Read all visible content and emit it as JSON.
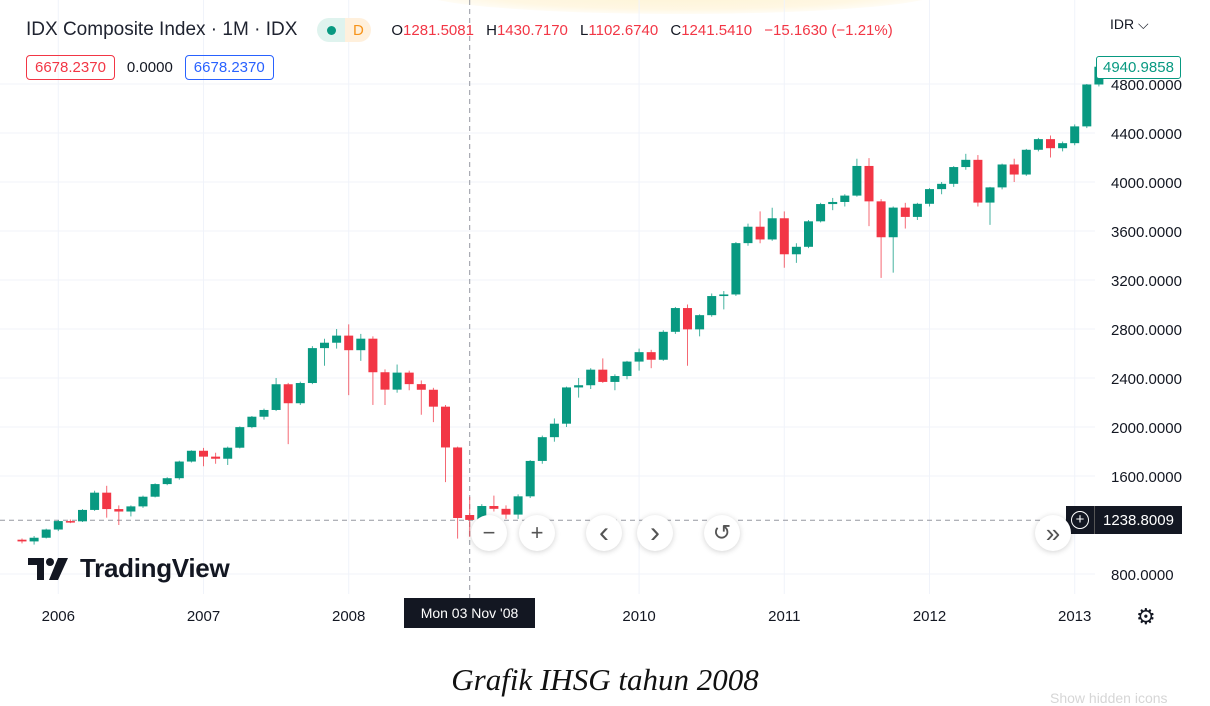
{
  "header": {
    "title": "IDX Composite Index · 1M · IDX",
    "badge_letter": "D",
    "ohlc": [
      {
        "k": "O",
        "v": "1281.5081"
      },
      {
        "k": "H",
        "v": "1430.7170"
      },
      {
        "k": "L",
        "v": "1102.6740"
      },
      {
        "k": "C",
        "v": "1241.5410"
      }
    ],
    "change": "−15.1630 (−1.21%)",
    "bid": "6678.2370",
    "spread": "0.0000",
    "ask": "6678.2370"
  },
  "currency": "IDR",
  "last_price": "4940.9858",
  "crosshair": {
    "price": "1238.8009",
    "time": "Mon 03 Nov '08"
  },
  "nav": {
    "zoom_out": "−",
    "zoom_in": "+",
    "left": "‹",
    "right": "›",
    "reset": "↺",
    "scroll_end": "»"
  },
  "logo_text": "TradingView",
  "caption": "Grafik IHSG tahun 2008",
  "tooltip": "Show hidden icons",
  "colors": {
    "up": "#089981",
    "down": "#f23645",
    "grid": "#f0f3fa"
  },
  "chart_data": {
    "type": "candlestick",
    "title": "IDX Composite Index · 1M · IDX",
    "xlabel": "",
    "ylabel": "IDR",
    "start_month": "2005-10",
    "interval": "1M",
    "ylim": [
      800,
      4900
    ],
    "y_ticks": [
      "800.0000",
      "1600.0000",
      "2000.0000",
      "2400.0000",
      "2800.0000",
      "3200.0000",
      "3600.0000",
      "4000.0000",
      "4400.0000",
      "4800.0000"
    ],
    "y_tick_values": [
      800,
      1600,
      2000,
      2400,
      2800,
      3200,
      3600,
      4000,
      4400,
      4800
    ],
    "x_ticks": [
      "2006",
      "2007",
      "2008",
      "2010",
      "2011",
      "2012",
      "2013"
    ],
    "x_tick_month_index": [
      3,
      15,
      27,
      51,
      63,
      75,
      87
    ],
    "grid": true,
    "ohlc": [
      [
        1080,
        1090,
        1050,
        1066
      ],
      [
        1066,
        1110,
        1040,
        1096
      ],
      [
        1096,
        1170,
        1090,
        1163
      ],
      [
        1163,
        1240,
        1150,
        1232
      ],
      [
        1232,
        1245,
        1215,
        1230
      ],
      [
        1230,
        1330,
        1225,
        1323
      ],
      [
        1323,
        1480,
        1315,
        1464
      ],
      [
        1464,
        1520,
        1260,
        1330
      ],
      [
        1330,
        1360,
        1200,
        1310
      ],
      [
        1310,
        1360,
        1270,
        1352
      ],
      [
        1352,
        1440,
        1340,
        1431
      ],
      [
        1431,
        1540,
        1425,
        1534
      ],
      [
        1534,
        1590,
        1525,
        1582
      ],
      [
        1582,
        1725,
        1570,
        1718
      ],
      [
        1718,
        1810,
        1710,
        1806
      ],
      [
        1806,
        1830,
        1680,
        1758
      ],
      [
        1758,
        1790,
        1700,
        1741
      ],
      [
        1741,
        1840,
        1690,
        1831
      ],
      [
        1831,
        2005,
        1825,
        1999
      ],
      [
        1999,
        2090,
        1990,
        2084
      ],
      [
        2084,
        2150,
        2060,
        2139
      ],
      [
        2139,
        2400,
        2130,
        2349
      ],
      [
        2349,
        2360,
        1860,
        2194
      ],
      [
        2194,
        2370,
        2180,
        2359
      ],
      [
        2359,
        2660,
        2350,
        2644
      ],
      [
        2644,
        2720,
        2500,
        2688
      ],
      [
        2688,
        2800,
        2640,
        2746
      ],
      [
        2746,
        2838,
        2260,
        2627
      ],
      [
        2627,
        2760,
        2540,
        2721
      ],
      [
        2721,
        2740,
        2180,
        2447
      ],
      [
        2447,
        2470,
        2180,
        2305
      ],
      [
        2305,
        2510,
        2280,
        2444
      ],
      [
        2444,
        2460,
        2300,
        2350
      ],
      [
        2350,
        2380,
        2100,
        2304
      ],
      [
        2304,
        2320,
        2040,
        2166
      ],
      [
        2166,
        2180,
        1550,
        1833
      ],
      [
        1833,
        1840,
        1089,
        1257
      ],
      [
        1281.5081,
        1430.717,
        1102.674,
        1241.541
      ],
      [
        1241,
        1370,
        1200,
        1355
      ],
      [
        1355,
        1440,
        1310,
        1332
      ],
      [
        1332,
        1360,
        1250,
        1285
      ],
      [
        1285,
        1450,
        1250,
        1434
      ],
      [
        1434,
        1730,
        1420,
        1723
      ],
      [
        1723,
        1930,
        1700,
        1917
      ],
      [
        1917,
        2070,
        1880,
        2027
      ],
      [
        2027,
        2330,
        2000,
        2323
      ],
      [
        2323,
        2400,
        2240,
        2341
      ],
      [
        2341,
        2480,
        2310,
        2468
      ],
      [
        2468,
        2560,
        2360,
        2368
      ],
      [
        2368,
        2430,
        2300,
        2416
      ],
      [
        2416,
        2540,
        2390,
        2534
      ],
      [
        2534,
        2640,
        2460,
        2611
      ],
      [
        2611,
        2630,
        2480,
        2549
      ],
      [
        2549,
        2790,
        2540,
        2777
      ],
      [
        2777,
        2980,
        2760,
        2971
      ],
      [
        2971,
        3000,
        2500,
        2797
      ],
      [
        2797,
        2920,
        2740,
        2913
      ],
      [
        2913,
        3090,
        2900,
        3069
      ],
      [
        3069,
        3110,
        2960,
        3082
      ],
      [
        3082,
        3510,
        3070,
        3501
      ],
      [
        3501,
        3660,
        3480,
        3635
      ],
      [
        3635,
        3760,
        3500,
        3531
      ],
      [
        3531,
        3790,
        3520,
        3704
      ],
      [
        3704,
        3760,
        3300,
        3410
      ],
      [
        3410,
        3500,
        3340,
        3471
      ],
      [
        3471,
        3690,
        3460,
        3679
      ],
      [
        3679,
        3830,
        3670,
        3820
      ],
      [
        3820,
        3870,
        3770,
        3837
      ],
      [
        3837,
        3900,
        3800,
        3889
      ],
      [
        3889,
        4190,
        3880,
        4131
      ],
      [
        4131,
        4195,
        3640,
        3842
      ],
      [
        3842,
        3860,
        3217,
        3549
      ],
      [
        3549,
        3800,
        3260,
        3791
      ],
      [
        3791,
        3830,
        3620,
        3715
      ],
      [
        3715,
        3830,
        3690,
        3822
      ],
      [
        3822,
        3950,
        3800,
        3942
      ],
      [
        3942,
        4000,
        3900,
        3985
      ],
      [
        3985,
        4130,
        3960,
        4122
      ],
      [
        4122,
        4230,
        4100,
        4181
      ],
      [
        4181,
        4220,
        3800,
        3832
      ],
      [
        3832,
        3960,
        3650,
        3956
      ],
      [
        3956,
        4150,
        3940,
        4143
      ],
      [
        4143,
        4190,
        4000,
        4061
      ],
      [
        4061,
        4270,
        4050,
        4263
      ],
      [
        4263,
        4360,
        4250,
        4350
      ],
      [
        4350,
        4380,
        4200,
        4276
      ],
      [
        4276,
        4330,
        4250,
        4317
      ],
      [
        4317,
        4470,
        4300,
        4454
      ],
      [
        4454,
        4800,
        4440,
        4796
      ],
      [
        4796,
        4970,
        4780,
        4940.9858
      ]
    ],
    "crosshair_month_index": 37,
    "crosshair_price": 1238.8009
  }
}
